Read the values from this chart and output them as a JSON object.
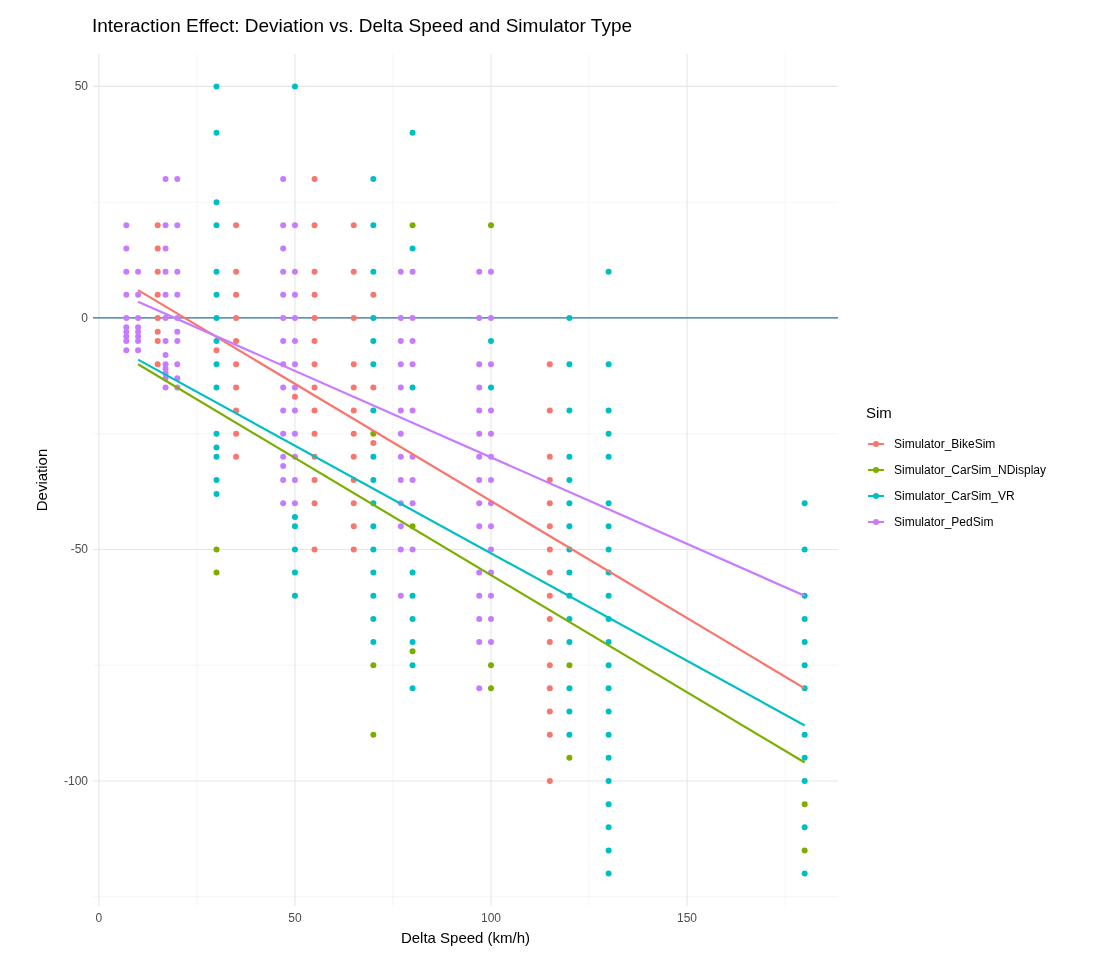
{
  "chart_data": {
    "type": "scatter",
    "title": "Interaction Effect: Deviation vs. Delta Speed and Simulator Type",
    "xlabel": "Delta Speed (km/h)",
    "ylabel": "Deviation",
    "legend_title": "Sim",
    "legend": "right",
    "grid": true,
    "marker": "circle",
    "xlim": [
      -1.5,
      188.5
    ],
    "ylim": [
      -127,
      57
    ],
    "xticks": [
      0,
      50,
      100,
      150
    ],
    "yticks": [
      -100,
      -50,
      0,
      50
    ],
    "ref_lines": [
      {
        "axis": "y",
        "value": 0,
        "color": "#2f74a6"
      }
    ],
    "series": [
      {
        "name": "Simulator_BikeSim",
        "color": "#f8766d",
        "x": [
          15,
          15,
          15,
          15,
          15,
          15,
          15,
          15,
          30,
          35,
          35,
          35,
          35,
          35,
          35,
          35,
          35,
          35,
          35,
          50,
          55,
          55,
          55,
          55,
          55,
          55,
          55,
          55,
          55,
          55,
          55,
          55,
          55,
          55,
          65,
          65,
          65,
          65,
          65,
          65,
          65,
          65,
          65,
          65,
          65,
          65,
          70,
          70,
          70,
          115,
          115,
          115,
          115,
          115,
          115,
          115,
          115,
          115,
          115,
          115,
          115,
          115,
          115,
          115,
          115
        ],
        "values": [
          20,
          15,
          10,
          5,
          0,
          -3,
          -5,
          -10,
          -7,
          20,
          10,
          5,
          0,
          -5,
          -10,
          -15,
          -20,
          -25,
          -30,
          -17,
          30,
          20,
          10,
          5,
          0,
          -5,
          -10,
          -15,
          -20,
          -25,
          -30,
          -35,
          -40,
          -50,
          20,
          10,
          0,
          -10,
          -15,
          -20,
          -25,
          -30,
          -35,
          -40,
          -45,
          -50,
          5,
          -15,
          -27,
          -10,
          -20,
          -30,
          -35,
          -40,
          -45,
          -50,
          -55,
          -60,
          -65,
          -70,
          -75,
          -80,
          -85,
          -90,
          -100
        ]
      },
      {
        "name": "Simulator_CarSim_NDisplay",
        "color": "#7cae00",
        "x": [
          30,
          30,
          70,
          70,
          70,
          80,
          80,
          80,
          100,
          100,
          100,
          120,
          120,
          180,
          180
        ],
        "values": [
          -50,
          -55,
          -25,
          -75,
          -90,
          20,
          -45,
          -72,
          20,
          -75,
          -80,
          -75,
          -95,
          -105,
          -115
        ]
      },
      {
        "name": "Simulator_CarSim_VR",
        "color": "#00bfc4",
        "x": [
          30,
          30,
          30,
          30,
          30,
          30,
          30,
          30,
          30,
          30,
          30,
          30,
          30,
          30,
          30,
          50,
          50,
          50,
          50,
          50,
          50,
          70,
          70,
          70,
          70,
          70,
          70,
          70,
          70,
          70,
          70,
          70,
          70,
          70,
          70,
          70,
          70,
          80,
          80,
          80,
          80,
          80,
          80,
          80,
          80,
          80,
          100,
          100,
          120,
          120,
          120,
          120,
          120,
          120,
          120,
          120,
          120,
          120,
          120,
          120,
          120,
          120,
          120,
          130,
          130,
          130,
          130,
          130,
          130,
          130,
          130,
          130,
          130,
          130,
          130,
          130,
          130,
          130,
          130,
          130,
          130,
          130,
          130,
          130,
          130,
          180,
          180,
          180,
          180,
          180,
          180,
          180,
          180,
          180,
          180,
          180,
          180
        ],
        "values": [
          50,
          40,
          25,
          20,
          10,
          5,
          0,
          -5,
          -10,
          -15,
          -25,
          -28,
          -30,
          -35,
          -38,
          50,
          -43,
          -45,
          -50,
          -55,
          -60,
          30,
          20,
          10,
          0,
          -5,
          -10,
          -20,
          -30,
          -35,
          -40,
          -45,
          -50,
          -55,
          -60,
          -65,
          -70,
          40,
          15,
          -15,
          -55,
          -60,
          -65,
          -70,
          -75,
          -80,
          -5,
          -15,
          0,
          -10,
          -20,
          -30,
          -35,
          -40,
          -45,
          -50,
          -55,
          -60,
          -65,
          -70,
          -80,
          -85,
          -90,
          10,
          -10,
          -20,
          -25,
          -30,
          -40,
          -45,
          -50,
          -55,
          -60,
          -65,
          -70,
          -75,
          -80,
          -85,
          -90,
          -95,
          -100,
          -105,
          -110,
          -115,
          -120,
          -40,
          -50,
          -60,
          -65,
          -70,
          -75,
          -80,
          -90,
          -95,
          -100,
          -110,
          -120
        ]
      },
      {
        "name": "Simulator_PedSim",
        "color": "#c77cff",
        "x": [
          7,
          7,
          7,
          7,
          7,
          7,
          7,
          7,
          7,
          7,
          10,
          10,
          10,
          10,
          10,
          10,
          10,
          10,
          17,
          17,
          17,
          17,
          17,
          17,
          17,
          17,
          17,
          17,
          17,
          17,
          17,
          20,
          20,
          20,
          20,
          20,
          20,
          20,
          20,
          20,
          20,
          47,
          47,
          47,
          47,
          47,
          47,
          47,
          47,
          47,
          47,
          47,
          47,
          47,
          47,
          47,
          50,
          50,
          50,
          50,
          50,
          50,
          50,
          50,
          50,
          50,
          50,
          50,
          77,
          77,
          77,
          77,
          77,
          77,
          77,
          77,
          77,
          77,
          77,
          77,
          77,
          80,
          80,
          80,
          80,
          80,
          80,
          80,
          80,
          80,
          97,
          97,
          97,
          97,
          97,
          97,
          97,
          97,
          97,
          97,
          97,
          97,
          97,
          97,
          97,
          100,
          100,
          100,
          100,
          100,
          100,
          100,
          100,
          100,
          100,
          100,
          100,
          100,
          100
        ],
        "values": [
          20,
          15,
          10,
          5,
          0,
          -2,
          -3,
          -4,
          -5,
          -7,
          10,
          5,
          0,
          -2,
          -3,
          -4,
          -5,
          -7,
          30,
          20,
          15,
          10,
          5,
          0,
          -5,
          -8,
          -10,
          -11,
          -12,
          -13,
          -15,
          30,
          20,
          10,
          5,
          0,
          -3,
          -5,
          -10,
          -13,
          -15,
          30,
          20,
          15,
          10,
          5,
          0,
          -5,
          -10,
          -15,
          -20,
          -25,
          -30,
          -32,
          -35,
          -40,
          20,
          10,
          5,
          0,
          -5,
          -10,
          -15,
          -20,
          -25,
          -30,
          -35,
          -40,
          10,
          0,
          -5,
          -10,
          -15,
          -20,
          -25,
          -30,
          -35,
          -40,
          -45,
          -50,
          -60,
          10,
          0,
          -5,
          -10,
          -20,
          -30,
          -35,
          -40,
          -50,
          10,
          0,
          -10,
          -15,
          -20,
          -25,
          -30,
          -35,
          -40,
          -45,
          -55,
          -60,
          -65,
          -70,
          -80,
          10,
          0,
          -10,
          -20,
          -25,
          -30,
          -35,
          -40,
          -45,
          -50,
          -55,
          -60,
          -65,
          -70
        ]
      },
      {
        "type": "line",
        "marker": "none",
        "color": "#f8766d",
        "x": [
          10,
          180
        ],
        "values": [
          6,
          -80
        ]
      },
      {
        "type": "line",
        "marker": "none",
        "color": "#7cae00",
        "x": [
          10,
          180
        ],
        "values": [
          -10,
          -96
        ]
      },
      {
        "type": "line",
        "marker": "none",
        "color": "#00bfc4",
        "x": [
          10,
          180
        ],
        "values": [
          -9,
          -88
        ]
      },
      {
        "type": "line",
        "marker": "none",
        "color": "#c77cff",
        "x": [
          10,
          180
        ],
        "values": [
          3.5,
          -60
        ]
      }
    ]
  }
}
